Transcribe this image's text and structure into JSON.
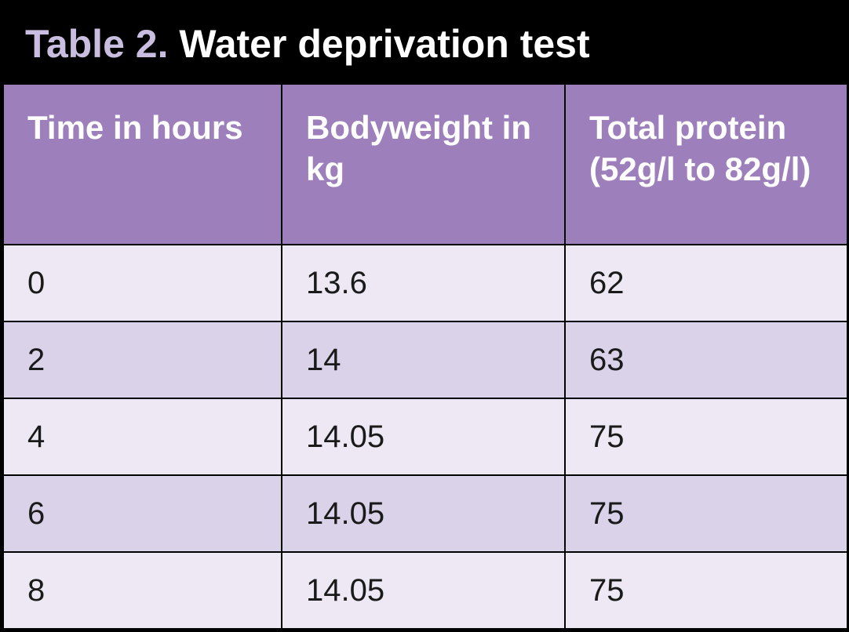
{
  "title": {
    "prefix": "Table 2.",
    "main": "Water deprivation test"
  },
  "colors": {
    "header_bg": "#9d80bb",
    "row_light": "#ede8f3",
    "row_dark": "#dad2e8",
    "title_prefix": "#c9bde0"
  },
  "table": {
    "headers": [
      "Time in hours",
      "Bodyweight in kg",
      "Total protein (52g/l to 82g/l)"
    ],
    "rows": [
      [
        "0",
        "13.6",
        "62"
      ],
      [
        "2",
        "14",
        "63"
      ],
      [
        "4",
        "14.05",
        "75"
      ],
      [
        "6",
        "14.05",
        "75"
      ],
      [
        "8",
        "14.05",
        "75"
      ]
    ]
  }
}
